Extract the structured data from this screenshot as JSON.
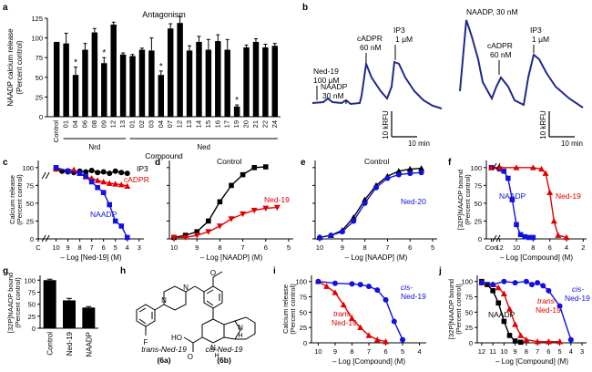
{
  "panel_letters": [
    "a",
    "b",
    "c",
    "d",
    "e",
    "f",
    "g",
    "h",
    "i",
    "j"
  ],
  "chart_data": [
    {
      "id": "a",
      "type": "bar",
      "title": "Antagonism",
      "ylabel_lines": [
        "NAADP calcium release",
        "(Percent control)"
      ],
      "xlabel": "Compound",
      "group_labels": [
        "Nrd",
        "Ned"
      ],
      "ylim": [
        0,
        125
      ],
      "yticks": [
        "0",
        "25",
        "50",
        "75",
        "100",
        "125"
      ],
      "categories": [
        "Control",
        "01",
        "04",
        "06",
        "08",
        "09",
        "12",
        "13",
        "01",
        "02",
        "03",
        "04",
        "07",
        "12",
        "13",
        "14",
        "15",
        "16",
        "17",
        "19",
        "20",
        "21",
        "22",
        "24"
      ],
      "values": [
        95,
        93,
        53,
        85,
        107,
        68,
        117,
        79,
        77,
        85,
        84,
        53,
        112,
        119,
        84,
        95,
        85,
        96,
        85,
        13,
        88,
        95,
        88,
        90
      ],
      "errors": [
        0,
        13,
        10,
        8,
        5,
        7,
        3,
        2,
        2,
        2,
        16,
        5,
        6,
        8,
        6,
        7,
        13,
        8,
        13,
        2,
        3,
        4,
        4,
        3
      ],
      "significance": [
        "",
        "",
        "*",
        "",
        "",
        "*",
        "",
        "",
        "",
        "",
        "",
        "*",
        "",
        "",
        "",
        "",
        "",
        "",
        "",
        "*",
        "",
        "",
        "",
        ""
      ]
    },
    {
      "id": "b",
      "type": "line",
      "annotations_left": [
        {
          "lines": [
            "Ned-19",
            "100 μM"
          ]
        },
        {
          "lines": [
            "NAADP",
            "30 nM"
          ]
        },
        {
          "lines": [
            "cADPR",
            "60 nM"
          ]
        },
        {
          "lines": [
            "IP3",
            "1 μM"
          ]
        }
      ],
      "annotations_right": [
        {
          "lines": [
            "NAADP, 30 nM"
          ]
        },
        {
          "lines": [
            "cADPR",
            "60 nM"
          ]
        },
        {
          "lines": [
            "IP3",
            "1 μM"
          ]
        }
      ],
      "scale_y": "10 kRFU",
      "scale_x": "10 min"
    },
    {
      "id": "c",
      "type": "line",
      "ylabel_lines": [
        "Calcium release",
        "(Percent control)"
      ],
      "xlabel": "– Log [Ned-19] (M)",
      "xticks": [
        "C",
        "10",
        "9",
        "8",
        "7",
        "6",
        "5",
        "4",
        "3"
      ],
      "yticks": [
        "0",
        "25",
        "50",
        "75",
        "100"
      ],
      "series": [
        {
          "name": "IP3",
          "color": "#000000",
          "x": [
            10,
            9.5,
            9,
            8.5,
            8,
            7.5,
            7,
            6.5,
            6,
            5.5,
            5,
            4.5,
            4
          ],
          "y": [
            98,
            95,
            94,
            93,
            95,
            94,
            96,
            93,
            94,
            92,
            95,
            93,
            92
          ]
        },
        {
          "name": "cADPR",
          "color": "#e00000",
          "x": [
            10,
            9,
            8.5,
            8,
            7.5,
            7,
            6.5,
            6,
            5.5,
            5,
            4.5,
            4
          ],
          "y": [
            98,
            96,
            97,
            92,
            87,
            85,
            82,
            80,
            78,
            77,
            76,
            74
          ]
        },
        {
          "name": "NAADP",
          "color": "#1010e0",
          "x": [
            10,
            9,
            8,
            7.5,
            7,
            6.5,
            6,
            5.5,
            5,
            4.5,
            4
          ],
          "y": [
            100,
            95,
            92,
            88,
            80,
            72,
            65,
            48,
            25,
            18,
            2
          ]
        }
      ]
    },
    {
      "id": "d",
      "type": "line",
      "ylabel_lines": [],
      "xlabel": "– Log [NAADP] (M)",
      "xticks": [
        "10",
        "9",
        "8",
        "7",
        "6",
        "5"
      ],
      "series": [
        {
          "name": "Control",
          "color": "#000000",
          "x": [
            10,
            9.5,
            9,
            8.5,
            8,
            7.5,
            7,
            6.5,
            6
          ],
          "y": [
            2,
            5,
            10,
            25,
            52,
            75,
            90,
            100,
            101
          ]
        },
        {
          "name": "Ned-19",
          "color": "#e00000",
          "x": [
            10,
            9.5,
            9,
            8.5,
            8,
            7.5,
            7,
            6.5,
            6,
            5.5
          ],
          "y": [
            2,
            2,
            5,
            10,
            18,
            28,
            35,
            40,
            43,
            44
          ]
        }
      ]
    },
    {
      "id": "e",
      "type": "line",
      "xlabel": "– Log [NAADP] (M)",
      "xticks": [
        "10",
        "9",
        "8",
        "7",
        "6",
        "5"
      ],
      "series": [
        {
          "name": "Control",
          "color": "#000000",
          "x": [
            10,
            9.5,
            9,
            8.5,
            8,
            7.5,
            7,
            6.5,
            6,
            5.5
          ],
          "y": [
            2,
            5,
            12,
            30,
            55,
            75,
            88,
            95,
            98,
            99
          ]
        },
        {
          "name": "Ned-20",
          "color": "#1010e0",
          "x": [
            10,
            9.5,
            9,
            8.5,
            8,
            7.5,
            7,
            6.5,
            6,
            5.5
          ],
          "y": [
            2,
            5,
            10,
            25,
            50,
            72,
            85,
            90,
            92,
            93
          ]
        }
      ]
    },
    {
      "id": "f",
      "type": "line",
      "ylabel_lines": [
        "[32P]NAADP bound",
        "(Percent control)"
      ],
      "xlabel": "– Log [Compound] (M)",
      "xticks": [
        "Con",
        "12",
        "10",
        "8",
        "6",
        "4",
        "2"
      ],
      "yticks": [
        "0",
        "25",
        "50",
        "75",
        "100"
      ],
      "series": [
        {
          "name": "NAADP",
          "color": "#1010e0",
          "x": [
            13,
            12,
            11.5,
            11,
            10.5,
            10,
            9.5,
            9,
            8.5,
            8
          ],
          "y": [
            100,
            98,
            95,
            85,
            55,
            20,
            6,
            3,
            2,
            2
          ]
        },
        {
          "name": "Ned-19",
          "color": "#e00000",
          "x": [
            13,
            12,
            10,
            8,
            7,
            6.5,
            6,
            5.5,
            5,
            4
          ],
          "y": [
            100,
            100,
            100,
            100,
            98,
            92,
            65,
            25,
            5,
            2
          ]
        }
      ]
    },
    {
      "id": "g",
      "type": "bar",
      "ylabel_lines": [
        "[32P]NAADP bound",
        "(Percent control)"
      ],
      "yticks": [
        "0",
        "25",
        "50",
        "75",
        "100"
      ],
      "ylim": [
        0,
        100
      ],
      "categories": [
        "Control",
        "Ned-19",
        "NAADP"
      ],
      "values": [
        100,
        58,
        43
      ],
      "errors": [
        2,
        4,
        2
      ]
    },
    {
      "id": "i",
      "type": "line",
      "ylabel_lines": [
        "Calcium release",
        "(Percent control)"
      ],
      "xlabel": "– Log [Compound] (M)",
      "xticks": [
        "10",
        "9",
        "8",
        "7",
        "6",
        "5",
        "4"
      ],
      "yticks": [
        "0",
        "25",
        "50",
        "75",
        "100"
      ],
      "series": [
        {
          "name": "trans-Ned-19",
          "color": "#e00000",
          "x": [
            10,
            9.5,
            9,
            8.5,
            8,
            7.5,
            7,
            6.5,
            6
          ],
          "y": [
            100,
            92,
            82,
            62,
            40,
            25,
            12,
            5,
            2
          ]
        },
        {
          "name": "cis-Ned-19",
          "color": "#1010e0",
          "x": [
            10,
            9,
            8,
            7.5,
            7,
            6.5,
            6,
            5.5,
            5
          ],
          "y": [
            100,
            97,
            96,
            95,
            92,
            86,
            70,
            35,
            5
          ]
        }
      ]
    },
    {
      "id": "j",
      "type": "line",
      "ylabel_lines": [
        "[32P]NAADP bound",
        "(Percent control)"
      ],
      "xlabel": "– Log [Compound] (M)",
      "xticks": [
        "12",
        "11",
        "10",
        "9",
        "8",
        "7",
        "6",
        "5",
        "4",
        "3"
      ],
      "yticks": [
        "0",
        "25",
        "50",
        "75",
        "100"
      ],
      "series": [
        {
          "name": "NAADP",
          "color": "#000000",
          "x": [
            12,
            11.5,
            11,
            10.5,
            10,
            9.5,
            9,
            8.5
          ],
          "y": [
            100,
            95,
            85,
            65,
            35,
            12,
            3,
            1
          ]
        },
        {
          "name": "trans-Ned-19",
          "color": "#e00000",
          "x": [
            12,
            11,
            10.5,
            10,
            9.5,
            9,
            8.5,
            8,
            7,
            6,
            5
          ],
          "y": [
            98,
            95,
            90,
            80,
            55,
            30,
            12,
            5,
            2,
            2,
            2
          ]
        },
        {
          "name": "cis-Ned-19",
          "color": "#1010e0",
          "x": [
            12,
            11,
            10,
            9,
            8,
            7.5,
            7,
            6.5,
            6,
            5,
            4
          ],
          "y": [
            98,
            95,
            100,
            98,
            100,
            95,
            98,
            93,
            85,
            60,
            5
          ]
        }
      ]
    }
  ],
  "panel_h": {
    "labels": [
      "trans-Ned-19",
      "cis-Ned-19"
    ],
    "ids": [
      "(6a)",
      "(6b)"
    ],
    "atoms": [
      "F",
      "N",
      "N",
      "O",
      "O",
      "HO",
      "N",
      "H",
      "H",
      "N"
    ]
  },
  "legend_d": [
    "Control",
    "Ned-19"
  ],
  "legend_e": [
    "Control",
    "Ned-20"
  ],
  "legend_c": [
    "IP3",
    "cADPR",
    "NAADP"
  ],
  "legend_f": [
    "NAADP",
    "Ned-19"
  ],
  "legend_i": [
    "cis-",
    "Ned-19",
    "trans-",
    "Ned-19"
  ],
  "legend_j": [
    "NAADP",
    "trans-",
    "Ned-19",
    "cis-",
    "Ned-19"
  ]
}
